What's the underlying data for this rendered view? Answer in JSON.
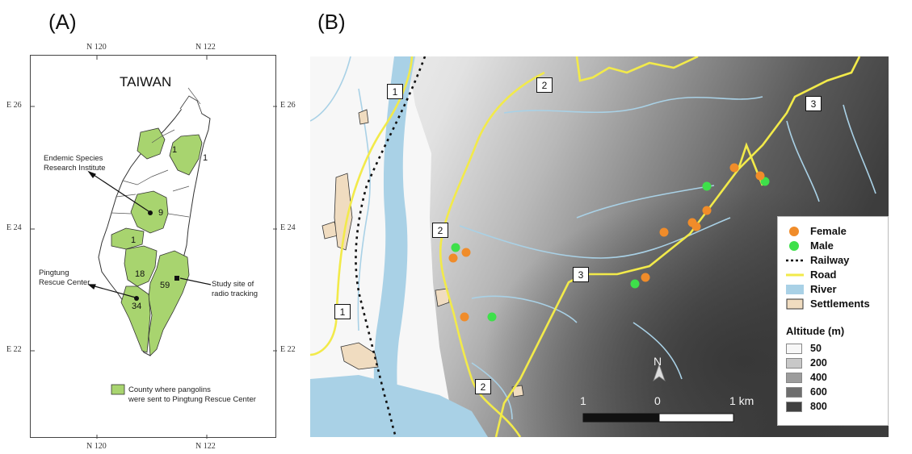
{
  "panel_a": {
    "label": "(A)",
    "title": "TAIWAN",
    "top_ticks": [
      "N 120",
      "N 122"
    ],
    "bottom_ticks": [
      "N 120",
      "N 122"
    ],
    "left_ticks": [
      "E 26",
      "E 24",
      "E 22"
    ],
    "right_ticks": [
      "E 26",
      "E 24",
      "E 22"
    ],
    "county_counts": [
      "1",
      "1",
      "9",
      "1",
      "18",
      "59",
      "34"
    ],
    "annotations": {
      "institute_line1": "Endemic Species",
      "institute_line2": "Research Institute",
      "rescue_line1": "Pingtung",
      "rescue_line2": "Rescue Center",
      "study_line1": "Study site of",
      "study_line2": "radio tracking"
    },
    "legend_line1": "County where pangolins",
    "legend_line2": "were sent to Pingtung Rescue Center",
    "colors": {
      "county_fill": "#a8d46f",
      "border": "#333333"
    }
  },
  "panel_b": {
    "label": "(B)",
    "road_labels": [
      "1",
      "1",
      "2",
      "2",
      "2",
      "3",
      "3"
    ],
    "north_label": "N",
    "scale": {
      "left": "1",
      "mid": "0",
      "right": "1 km"
    },
    "legend": {
      "female": "Female",
      "male": "Male",
      "railway": "Railway",
      "road": "Road",
      "river": "River",
      "settlements": "Settlements",
      "altitude_title": "Altitude (m)",
      "altitude_levels": [
        "50",
        "200",
        "400",
        "600",
        "800"
      ]
    },
    "colors": {
      "female": "#f08c2a",
      "male": "#3ee04a",
      "road": "#f2ea4a",
      "river": "#a9d1e6",
      "settlement": "#f0dcc0",
      "alt_50": "#f7f7f7",
      "alt_200": "#c8c8c8",
      "alt_400": "#9c9c9c",
      "alt_600": "#6e6e6e",
      "alt_800": "#404040"
    }
  }
}
